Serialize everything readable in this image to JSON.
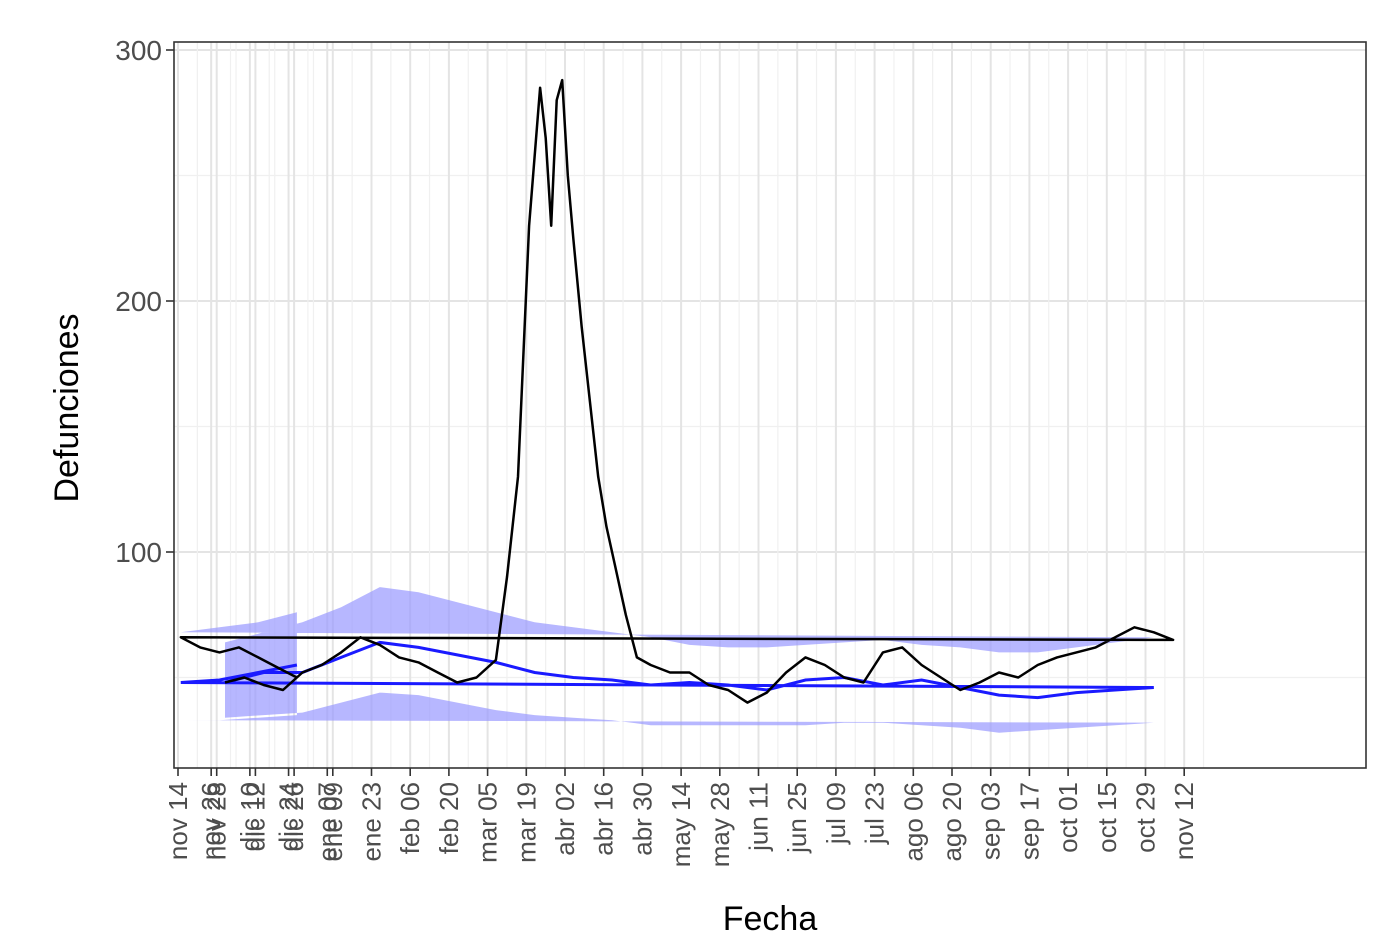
{
  "chart_data": {
    "type": "line",
    "xlabel": "Fecha",
    "ylabel": "Defunciones",
    "x_ticks": [
      "nov 14",
      "nov 28",
      "dic 12",
      "dic 26",
      "ene 09",
      "ene 23",
      "feb 06",
      "feb 20",
      "mar 05",
      "mar 19",
      "abr 02",
      "abr 16",
      "abr 30",
      "may 14",
      "may 28",
      "jun 11",
      "jun 25",
      "jul 09",
      "jul 23",
      "ago 06",
      "ago 20",
      "sep 03",
      "sep 17",
      "oct 01",
      "oct 15",
      "oct 29",
      "nov 12",
      "nov 26",
      "dic 10",
      "dic 24",
      "ene 07"
    ],
    "y_ticks": [
      100,
      200,
      300
    ],
    "ylim": [
      15,
      305
    ],
    "grid": true,
    "legend": "none",
    "colors": {
      "observed": "#000000",
      "expected": "#1a1aff",
      "band": "#9999ff"
    },
    "series": [
      {
        "kind": "observed",
        "x": [
          "dic 01",
          "dic 08",
          "dic 15",
          "dic 22",
          "dic 29",
          "ene 05",
          "ene 12",
          "ene 19",
          "ene 26",
          "feb 02",
          "feb 09",
          "feb 16",
          "feb 23",
          "mar 01",
          "mar 08",
          "mar 12",
          "mar 16",
          "mar 20",
          "mar 24",
          "mar 26",
          "mar 28",
          "mar 30",
          "abr 01",
          "abr 03",
          "abr 05",
          "abr 08",
          "abr 11",
          "abr 14",
          "abr 17",
          "abr 20",
          "abr 24",
          "abr 28",
          "may 03",
          "may 10",
          "may 17",
          "may 24",
          "may 31",
          "jun 07",
          "jun 14",
          "jun 21",
          "jun 28",
          "jul 05",
          "jul 12",
          "jul 19",
          "jul 26",
          "ago 02",
          "ago 09",
          "ago 16",
          "ago 23",
          "ago 30",
          "sep 06",
          "sep 13",
          "sep 20",
          "sep 27",
          "oct 04",
          "oct 11",
          "oct 18",
          "oct 25",
          "nov 01",
          "nov 08",
          "nov 15",
          "nov 22",
          "nov 29",
          "dic 06",
          "dic 13",
          "dic 20",
          "dic 27"
        ],
        "values": [
          48,
          50,
          47,
          45,
          52,
          55,
          60,
          66,
          63,
          58,
          56,
          52,
          48,
          50,
          57,
          90,
          130,
          230,
          285,
          265,
          230,
          280,
          288,
          250,
          225,
          190,
          160,
          130,
          110,
          95,
          75,
          58,
          55,
          52,
          52,
          47,
          45,
          40,
          44,
          52,
          58,
          55,
          50,
          48,
          60,
          62,
          55,
          50,
          45,
          48,
          52,
          50,
          55,
          58,
          60,
          62,
          66,
          70,
          68,
          65,
          66,
          62,
          60,
          62,
          58,
          54,
          50
        ]
      },
      {
        "kind": "expected",
        "x": [
          "dic 01",
          "dic 15",
          "dic 29",
          "ene 12",
          "ene 26",
          "feb 09",
          "feb 23",
          "mar 08",
          "mar 22",
          "abr 05",
          "abr 19",
          "may 03",
          "may 17",
          "may 31",
          "jun 14",
          "jun 28",
          "jul 12",
          "jul 26",
          "ago 09",
          "ago 23",
          "sep 06",
          "sep 20",
          "oct 04",
          "oct 18",
          "nov 01",
          "nov 15",
          "nov 29",
          "dic 13",
          "dic 27"
        ],
        "values": [
          48,
          52,
          52,
          58,
          64,
          62,
          59,
          56,
          52,
          50,
          49,
          47,
          48,
          47,
          45,
          49,
          50,
          47,
          49,
          46,
          43,
          42,
          44,
          45,
          46,
          48,
          49,
          52,
          55
        ],
        "lower": [
          34,
          35,
          36,
          40,
          44,
          43,
          40,
          37,
          35,
          34,
          33,
          31,
          31,
          31,
          31,
          31,
          32,
          32,
          31,
          30,
          28,
          29,
          30,
          31,
          32,
          33,
          33,
          34,
          35
        ],
        "upper": [
          64,
          68,
          72,
          78,
          86,
          84,
          80,
          76,
          72,
          70,
          68,
          66,
          63,
          62,
          62,
          63,
          64,
          65,
          63,
          62,
          60,
          60,
          62,
          64,
          66,
          68,
          70,
          72,
          76
        ]
      }
    ]
  }
}
